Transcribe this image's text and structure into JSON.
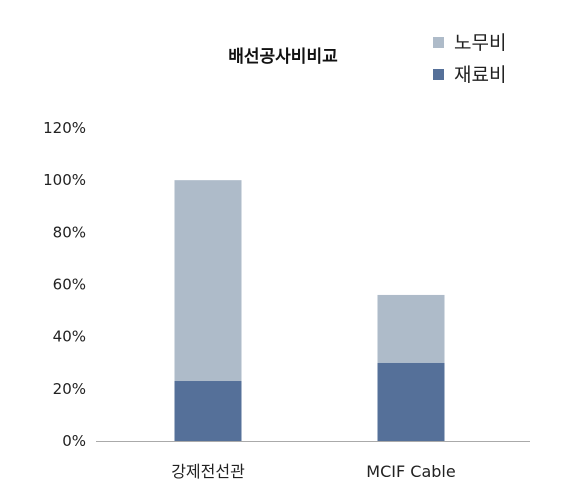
{
  "chart_data": {
    "type": "bar",
    "stacked": true,
    "title": "배선공사비비교",
    "xlabel": "",
    "ylabel": "",
    "categories": [
      "강제전선관",
      "MCIF Cable"
    ],
    "series": [
      {
        "name": "재료비",
        "values": [
          23,
          30
        ],
        "color": "#557099"
      },
      {
        "name": "노무비",
        "values": [
          77,
          26
        ],
        "color": "#aebbc9"
      }
    ],
    "ylim": [
      0,
      120
    ],
    "yticks": [
      0,
      20,
      40,
      60,
      80,
      100,
      120
    ],
    "ytick_labels": [
      "0%",
      "20%",
      "40%",
      "60%",
      "80%",
      "100%",
      "120%"
    ],
    "legend_order": [
      "노무비",
      "재료비"
    ],
    "legend_position": "top-right",
    "grid": false,
    "colors": {
      "axis": "#aaaaaa",
      "background": "#ffffff"
    }
  }
}
